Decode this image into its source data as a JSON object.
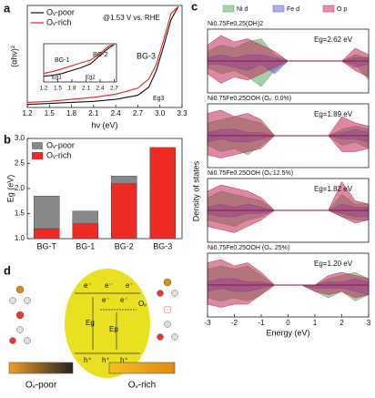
{
  "chart_data": [
    {
      "type": "line",
      "panel": "a",
      "x_label": "hν (eV)",
      "y_label": "(αhν)²",
      "annotation": "@1.53 V vs. RHE",
      "bg_label": "BG-3",
      "eg_label": "Eg3",
      "x": [
        1.2,
        1.5,
        1.8,
        2.1,
        2.4,
        2.7,
        2.85,
        2.95,
        3.05,
        3.15,
        3.25
      ],
      "series": [
        {
          "name": "Oᵥ-poor",
          "color": "#111111",
          "values": [
            0.3,
            0.4,
            0.5,
            0.6,
            0.8,
            1.2,
            2.0,
            3.6,
            6.0,
            8.6,
            9.9
          ]
        },
        {
          "name": "Oᵥ-rich",
          "color": "#e8231f",
          "values": [
            0.5,
            0.6,
            0.8,
            1.0,
            1.3,
            1.9,
            2.8,
            4.2,
            6.6,
            9.2,
            9.9
          ]
        }
      ],
      "xlim": [
        1.2,
        3.3
      ],
      "ylim": [
        0,
        10
      ],
      "xticks": [
        1.2,
        1.5,
        1.8,
        2.1,
        2.4,
        2.7,
        {
          "value": 3,
          "label": "3.0"
        },
        3.3
      ]
    },
    {
      "type": "line",
      "panel": null,
      "bg_labels": [
        "BG-1",
        "BG-2"
      ],
      "eg_labels": [
        "Eg1",
        "Eg2"
      ],
      "x": [
        1.2,
        1.4,
        1.6,
        1.8,
        2.0,
        2.2,
        2.4,
        2.6,
        2.7
      ],
      "series": [
        {
          "name": null,
          "color": "#111111",
          "values": [
            0.6,
            0.7,
            0.9,
            1.2,
            1.5,
            1.9,
            2.8,
            3.6,
            3.9
          ]
        },
        {
          "name": null,
          "color": "#e8231f",
          "values": [
            0.9,
            1.1,
            1.4,
            1.7,
            2.0,
            2.3,
            3.0,
            3.8,
            3.9
          ]
        }
      ],
      "xlim": [
        1.2,
        2.75
      ],
      "ylim": [
        0,
        4
      ],
      "xticks": [
        1.2,
        1.5,
        1.8,
        2.1,
        2.4,
        2.7
      ]
    },
    {
      "type": "bar",
      "panel": "b",
      "y_label": "Eg (eV)",
      "legend": "upper left",
      "categories": [
        "BG-T",
        "BG-1",
        "BG-2",
        "BG-3"
      ],
      "series": [
        {
          "name": "Oᵥ-poor",
          "color": "#888888",
          "values": [
            1.85,
            1.55,
            2.25,
            2.8
          ]
        },
        {
          "name": "Oᵥ-rich",
          "color": "#ee2a24",
          "values": [
            1.2,
            1.3,
            2.1,
            2.82
          ]
        }
      ],
      "ylim": [
        1,
        3
      ],
      "yticks": [
        {
          "value": 1,
          "label": "1.0"
        },
        1.5,
        {
          "value": 2,
          "label": "2.0"
        },
        2.5,
        {
          "value": 3,
          "label": "3.0"
        }
      ]
    },
    {
      "type": "area",
      "panel": "c",
      "y_label": "Density of states",
      "title": "Ni0.75Fe0.25(OH)2",
      "eg_label": "Eg=2.62 eV",
      "x": [
        -3,
        -2.5,
        -2,
        -1.5,
        -1,
        -0.5,
        0,
        0.5,
        1,
        1.5,
        2,
        2.5,
        3
      ],
      "xlim": [
        -3,
        3
      ],
      "ylim": [
        -1,
        1
      ],
      "series": [
        {
          "name": "Ni d",
          "color": "#5aa55a",
          "values": [
            0.3,
            0.5,
            0.4,
            0.6,
            0.7,
            0.2,
            0,
            0,
            0,
            0,
            0,
            0.2,
            0.1
          ],
          "values_down": [
            0.2,
            0.4,
            0.3,
            0.5,
            0.8,
            0.3,
            0,
            0,
            0,
            0,
            0,
            0.1,
            0.6
          ]
        },
        {
          "name": "Fe d",
          "color": "#6060d0",
          "values": [
            0.1,
            0.2,
            0.1,
            0.2,
            0.2,
            0.1,
            0,
            0,
            0,
            0,
            0,
            0.1,
            0.1
          ],
          "values_down": [
            0.1,
            0.1,
            0.2,
            0.3,
            0.1,
            0.4,
            0,
            0,
            0,
            0,
            0,
            0.2,
            0.1
          ]
        },
        {
          "name": "O p",
          "color": "#c02a5a",
          "values": [
            0.5,
            0.8,
            0.6,
            0.7,
            0.5,
            0.3,
            0,
            0,
            0,
            0,
            0,
            0.4,
            0.2
          ],
          "values_down": [
            0.4,
            0.7,
            0.5,
            0.6,
            0.4,
            0.2,
            0,
            0,
            0,
            0,
            0,
            0.3,
            0.5
          ]
        }
      ]
    },
    {
      "type": "area",
      "panel": null,
      "title": "Ni0.75Fe0.25OOH (Oᵥ: 0.0%)",
      "eg_label": "Eg=1.89 eV",
      "x": [
        -3,
        -2.5,
        -2,
        -1.5,
        -1,
        -0.5,
        0,
        0.5,
        1,
        1.5,
        2,
        2.5,
        3
      ],
      "xlim": [
        -3,
        3
      ],
      "ylim": [
        -1,
        1
      ],
      "series": [
        {
          "name": "Ni d",
          "color": "#5aa55a",
          "values": [
            0.4,
            0.5,
            0.6,
            0.5,
            0.4,
            0,
            0,
            0,
            0,
            0,
            0.2,
            0.3,
            0.2
          ],
          "values_down": [
            0.3,
            0.5,
            0.4,
            0.6,
            0.3,
            0,
            0,
            0,
            0,
            0,
            0.3,
            0.2,
            0.4
          ]
        },
        {
          "name": "Fe d",
          "color": "#6060d0",
          "values": [
            0.1,
            0.2,
            0.2,
            0.1,
            0.1,
            0,
            0,
            0,
            0,
            0,
            0.1,
            0.2,
            0.1
          ],
          "values_down": [
            0.2,
            0.1,
            0.2,
            0.2,
            0.1,
            0,
            0,
            0,
            0,
            0,
            0.1,
            0.1,
            0.2
          ]
        },
        {
          "name": "O p",
          "color": "#c02a5a",
          "values": [
            0.7,
            0.8,
            0.6,
            0.7,
            0.5,
            0,
            0,
            0,
            0,
            0,
            0.6,
            0.4,
            0.3
          ],
          "values_down": [
            0.6,
            0.7,
            0.6,
            0.5,
            0.4,
            0,
            0,
            0,
            0,
            0,
            0.5,
            0.5,
            0.4
          ]
        }
      ]
    },
    {
      "type": "area",
      "panel": null,
      "title": "Ni0.75Fe0.25OOH (Oᵥ:12.5%)",
      "eg_label": "Eg=1.82 eV",
      "x": [
        -3,
        -2.5,
        -2,
        -1.5,
        -1,
        -0.5,
        0,
        0.5,
        1,
        1.5,
        2,
        2.5,
        3
      ],
      "xlim": [
        -3,
        3
      ],
      "ylim": [
        -1,
        1
      ],
      "series": [
        {
          "name": "Ni d",
          "color": "#5aa55a",
          "values": [
            0.4,
            0.6,
            0.5,
            0.4,
            0.3,
            0,
            0,
            0,
            0,
            0,
            0.5,
            0.2,
            0.2
          ],
          "values_down": [
            0.3,
            0.4,
            0.5,
            0.3,
            0.2,
            0,
            0,
            0,
            0,
            0,
            0.2,
            0.3,
            0.3
          ]
        },
        {
          "name": "Fe d",
          "color": "#6060d0",
          "values": [
            0.1,
            0.2,
            0.1,
            0.2,
            0.1,
            0,
            0,
            0,
            0,
            0,
            0.2,
            0.1,
            0.1
          ],
          "values_down": [
            0.1,
            0.2,
            0.2,
            0.1,
            0.1,
            0,
            0,
            0,
            0,
            0,
            0.1,
            0.2,
            0.2
          ]
        },
        {
          "name": "O p",
          "color": "#c02a5a",
          "values": [
            0.6,
            0.8,
            0.7,
            0.6,
            0.4,
            0,
            0,
            0,
            0,
            0,
            0.9,
            0.3,
            0.2
          ],
          "values_down": [
            0.5,
            0.6,
            0.7,
            0.5,
            0.3,
            0,
            0,
            0,
            0,
            0,
            0.2,
            0.4,
            0.3
          ]
        }
      ]
    },
    {
      "type": "area",
      "panel": null,
      "title": "Ni0.75Fe0.25OOH (Oᵥ: 25%)",
      "eg_label": "Eg=1.20 eV",
      "x_label": "Energy (eV)",
      "x": [
        -3,
        -2.5,
        -2,
        -1.5,
        -1,
        -0.5,
        0,
        0.5,
        1,
        1.5,
        2,
        2.5,
        3
      ],
      "xlim": [
        -3,
        3
      ],
      "ylim": [
        -1,
        1
      ],
      "xticks": [
        -3,
        -2,
        -1,
        0,
        1,
        2,
        3
      ],
      "series": [
        {
          "name": "Ni d",
          "color": "#5aa55a",
          "values": [
            0.5,
            0.6,
            0.5,
            0.6,
            0.3,
            0,
            0,
            0,
            0,
            0.2,
            0.3,
            0.4,
            0.2
          ],
          "values_down": [
            0.4,
            0.5,
            0.4,
            0.5,
            0.3,
            0,
            0,
            0,
            0.2,
            0.4,
            0.2,
            0.5,
            0.3
          ]
        },
        {
          "name": "Fe d",
          "color": "#6060d0",
          "values": [
            0.1,
            0.2,
            0.2,
            0.1,
            0.1,
            0,
            0,
            0,
            0,
            0.1,
            0.1,
            0.2,
            0.1
          ],
          "values_down": [
            0.2,
            0.1,
            0.2,
            0.2,
            0.1,
            0,
            0,
            0,
            0.1,
            0.1,
            0.1,
            0.2,
            0.3
          ]
        },
        {
          "name": "O p",
          "color": "#c02a5a",
          "values": [
            0.7,
            0.8,
            0.6,
            0.7,
            0.4,
            0,
            0,
            0,
            0,
            0.3,
            0.4,
            0.3,
            0.2
          ],
          "values_down": [
            0.6,
            0.7,
            0.6,
            0.6,
            0.3,
            0,
            0,
            0,
            0.2,
            0.3,
            0.2,
            0.4,
            0.3
          ]
        }
      ]
    }
  ],
  "diagram": {
    "panel": "d",
    "electron": "e⁻",
    "hole": "h⁺",
    "eg": "Eg",
    "ep": "Ep",
    "ov": "Oᵥ",
    "left": "Oᵥ-poor",
    "right": "Oᵥ-rich"
  }
}
